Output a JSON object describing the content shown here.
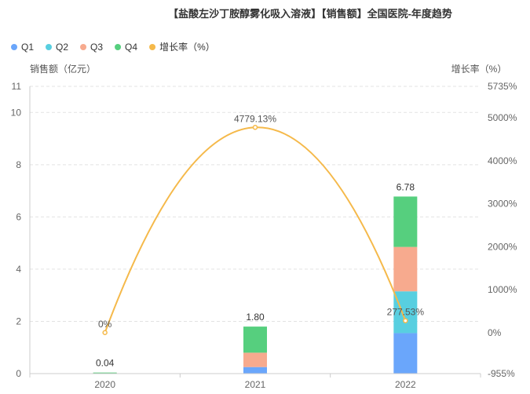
{
  "chart_data": {
    "type": "bar",
    "title": "【盐酸左沙丁胺醇雾化吸入溶液】【销售额】全国医院-年度趋势",
    "categories": [
      "2020",
      "2021",
      "2022"
    ],
    "ylabel": "销售额（亿元）",
    "y2label": "增长率（%）",
    "ylim": [
      0,
      11
    ],
    "yticks": [
      0,
      2,
      4,
      6,
      8,
      10,
      11
    ],
    "y2lim": [
      -955,
      5735
    ],
    "y2ticks": [
      "-955%",
      "0%",
      "1000%",
      "2000%",
      "3000%",
      "4000%",
      "5000%",
      "5735%"
    ],
    "y2tick_values": [
      -955,
      0,
      1000,
      2000,
      3000,
      4000,
      5000,
      5735
    ],
    "legend_position": "top-left",
    "grid": true,
    "series": [
      {
        "name": "Q1",
        "color": "#6aa6fb",
        "values": [
          0.01,
          0.25,
          1.55
        ]
      },
      {
        "name": "Q2",
        "color": "#58cfe0",
        "values": [
          0.01,
          0.0,
          1.6
        ]
      },
      {
        "name": "Q3",
        "color": "#f7aa8e",
        "values": [
          0.01,
          0.55,
          1.7
        ]
      },
      {
        "name": "Q4",
        "color": "#56cf7e",
        "values": [
          0.01,
          1.0,
          1.93
        ]
      }
    ],
    "totals": [
      "0.04",
      "1.80",
      "6.78"
    ],
    "total_values": [
      0.04,
      1.8,
      6.78
    ],
    "growth": {
      "name": "增长率（%）",
      "color": "#f5b94a",
      "values": [
        0,
        4779.13,
        277.53
      ],
      "labels": [
        "0%",
        "4779.13%",
        "277.53%"
      ]
    }
  }
}
